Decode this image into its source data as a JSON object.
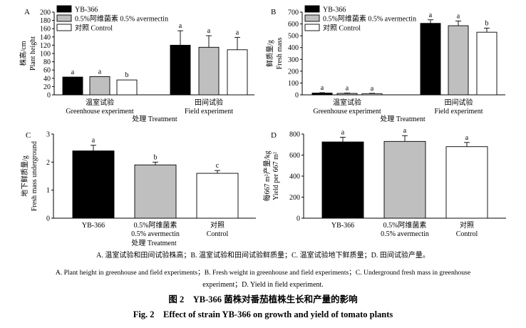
{
  "chart_data": [
    {
      "type": "bar",
      "panel_letter": "A",
      "ylabel_cn": "株高/cm",
      "ylabel_en": "Plant height",
      "ylim": [
        0,
        200
      ],
      "yticks": [
        "0",
        "20",
        "40",
        "60",
        "80",
        "100",
        "120",
        "140",
        "160",
        "180",
        "200"
      ],
      "groups": [
        {
          "label_cn": "温室试验",
          "label_en": "Greenhouse experiment"
        },
        {
          "label_cn": "田间试验",
          "label_en": "Field experiment"
        }
      ],
      "xlabel": "处理 Treatment",
      "legend": [
        {
          "label": "YB-366",
          "color": "#000000"
        },
        {
          "label": "0.5%阿维菌素 0.5% avermectin",
          "color": "#bfbfbf"
        },
        {
          "label": "对照  Control",
          "color": "#ffffff"
        }
      ],
      "series": [
        {
          "values": [
            43,
            120
          ],
          "errors": [
            0,
            35
          ],
          "letters": [
            "a",
            "a"
          ],
          "color": "#000000"
        },
        {
          "values": [
            44,
            115
          ],
          "errors": [
            0,
            28
          ],
          "letters": [
            "a",
            "a"
          ],
          "color": "#bfbfbf"
        },
        {
          "values": [
            36,
            109
          ],
          "errors": [
            0,
            30
          ],
          "letters": [
            "b",
            "a"
          ],
          "color": "#ffffff"
        }
      ]
    },
    {
      "type": "bar",
      "panel_letter": "B",
      "ylabel_cn": "鲜质量/g",
      "ylabel_en": "Fresh mass",
      "ylim": [
        0,
        700
      ],
      "yticks": [
        "0",
        "100",
        "200",
        "300",
        "400",
        "500",
        "600",
        "700"
      ],
      "groups": [
        {
          "label_cn": "温室试验",
          "label_en": "Greenhouse experiment"
        },
        {
          "label_cn": "田间试验",
          "label_en": "Field experiment"
        }
      ],
      "xlabel": "处理 Treatment",
      "legend": [
        {
          "label": "YB-366",
          "color": "#000000"
        },
        {
          "label": "0.5%阿维菌素 0.5% avermectin",
          "color": "#bfbfbf"
        },
        {
          "label": "对照  Control",
          "color": "#ffffff"
        }
      ],
      "series": [
        {
          "values": [
            15,
            605
          ],
          "errors": [
            3,
            30
          ],
          "letters": [
            "a",
            "a"
          ],
          "color": "#000000"
        },
        {
          "values": [
            12,
            585
          ],
          "errors": [
            3,
            40
          ],
          "letters": [
            "a",
            "a"
          ],
          "color": "#bfbfbf"
        },
        {
          "values": [
            10,
            530
          ],
          "errors": [
            3,
            35
          ],
          "letters": [
            "a",
            "b"
          ],
          "color": "#ffffff"
        }
      ]
    },
    {
      "type": "bar",
      "panel_letter": "C",
      "ylabel_cn": "地下鲜质量/g",
      "ylabel_en": "Fresh mass underground",
      "ylim": [
        0,
        3
      ],
      "yticks": [
        "0",
        "1",
        "2",
        "3"
      ],
      "xlabel": "处理 Treatment",
      "categories": [
        {
          "line1": "YB-366",
          "line2": ""
        },
        {
          "line1": "0.5%阿维菌素",
          "line2": "0.5% avermectin"
        },
        {
          "line1": "对照",
          "line2": "Control"
        }
      ],
      "values": [
        2.4,
        1.9,
        1.6
      ],
      "errors": [
        0.2,
        0.1,
        0.1
      ],
      "letters": [
        "a",
        "b",
        "c"
      ],
      "colors": [
        "#000000",
        "#bfbfbf",
        "#ffffff"
      ]
    },
    {
      "type": "bar",
      "panel_letter": "D",
      "ylabel_cn": "每667 m²产量/kg",
      "ylabel_en": "Yield per 667 m²",
      "ylim": [
        0,
        800
      ],
      "yticks": [
        "0",
        "200",
        "400",
        "600",
        "800"
      ],
      "categories": [
        {
          "line1": "YB-366",
          "line2": ""
        },
        {
          "line1": "0.5%阿维菌素",
          "line2": "0.5% avermectin"
        },
        {
          "line1": "对照",
          "line2": "Control"
        }
      ],
      "values": [
        725,
        730,
        680
      ],
      "errors": [
        45,
        55,
        40
      ],
      "letters": [
        "a",
        "a",
        "a"
      ],
      "colors": [
        "#000000",
        "#bfbfbf",
        "#ffffff"
      ]
    }
  ],
  "caption": {
    "legend_cn": "A. 温室试验和田间试验株高；B. 温室试验和田间试验鲜质量；C. 温室试验地下鲜质量；D. 田间试验产量。",
    "legend_en_1": "A. Plant height in greenhouse and field experiments；B. Fresh weight in greenhouse and field experiments；C. Underground fresh mass in greenhouse",
    "legend_en_2": "experiment；D. Yield in field experiment.",
    "title_cn": "图 2　YB-366 菌株对番茄植株生长和产量的影响",
    "title_en": "Fig. 2　Effect of strain YB-366 on growth and yield of tomato plants"
  }
}
